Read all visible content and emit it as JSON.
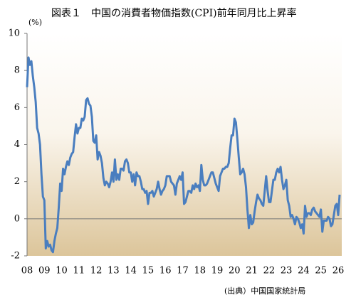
{
  "chart_data": {
    "type": "line",
    "title": "図表１　中国の消費者物価指数(CPI)前年同月比上昇率",
    "y_unit_label": "(%)",
    "source": "(出典）中国国家統計局",
    "categories": [
      "08",
      null,
      null,
      null,
      null,
      null,
      null,
      null,
      null,
      null,
      null,
      null,
      "09",
      null,
      null,
      null,
      null,
      null,
      null,
      null,
      null,
      null,
      null,
      null,
      "10",
      null,
      null,
      null,
      null,
      null,
      null,
      null,
      null,
      null,
      null,
      null,
      "11",
      null,
      null,
      null,
      null,
      null,
      null,
      null,
      null,
      null,
      null,
      null,
      "12",
      null,
      null,
      null,
      null,
      null,
      null,
      null,
      null,
      null,
      null,
      null,
      "13",
      null,
      null,
      null,
      null,
      null,
      null,
      null,
      null,
      null,
      null,
      null,
      "14",
      null,
      null,
      null,
      null,
      null,
      null,
      null,
      null,
      null,
      null,
      null,
      "15",
      null,
      null,
      null,
      null,
      null,
      null,
      null,
      null,
      null,
      null,
      null,
      "16",
      null,
      null,
      null,
      null,
      null,
      null,
      null,
      null,
      null,
      null,
      null,
      "17",
      null,
      null,
      null,
      null,
      null,
      null,
      null,
      null,
      null,
      null,
      null,
      "18",
      null,
      null,
      null,
      null,
      null,
      null,
      null,
      null,
      null,
      null,
      null,
      "19",
      null,
      null,
      null,
      null,
      null,
      null,
      null,
      null,
      null,
      null,
      null,
      "20",
      null,
      null,
      null,
      null,
      null,
      null,
      null,
      null,
      null,
      null,
      null,
      "21",
      null,
      null,
      null,
      null,
      null,
      null,
      null,
      null,
      null,
      null,
      null,
      "22",
      null,
      null,
      null,
      null,
      null,
      null,
      null,
      null,
      null,
      null,
      null,
      "23",
      null,
      null,
      null,
      null,
      null,
      null,
      null,
      null,
      null,
      null,
      null,
      "24",
      null,
      null,
      null,
      null,
      null,
      null,
      null,
      null,
      null,
      null,
      null,
      "25",
      null,
      null,
      null,
      null,
      null,
      null,
      null,
      null,
      null,
      null,
      null,
      "26",
      null
    ],
    "values": [
      7.1,
      8.7,
      8.3,
      8.5,
      7.7,
      7.1,
      6.3,
      4.9,
      4.6,
      4.0,
      2.4,
      1.2,
      1.0,
      -1.6,
      -1.2,
      -1.5,
      -1.4,
      -1.7,
      -1.8,
      -1.2,
      -0.8,
      -0.5,
      0.6,
      1.9,
      1.5,
      2.7,
      2.4,
      2.8,
      3.1,
      2.9,
      3.3,
      3.5,
      3.6,
      4.4,
      5.1,
      4.6,
      4.9,
      4.9,
      5.4,
      5.3,
      5.5,
      6.4,
      6.5,
      6.2,
      6.1,
      5.5,
      4.2,
      4.1,
      4.5,
      3.2,
      3.6,
      3.4,
      3.0,
      2.2,
      1.8,
      2.0,
      1.9,
      1.7,
      2.0,
      2.5,
      2.0,
      3.2,
      2.1,
      2.4,
      2.1,
      2.7,
      2.7,
      2.6,
      3.1,
      3.2,
      3.0,
      2.5,
      2.5,
      2.0,
      2.4,
      1.8,
      2.5,
      2.3,
      2.3,
      2.0,
      1.6,
      1.6,
      1.4,
      1.5,
      0.8,
      1.4,
      1.4,
      1.5,
      1.2,
      1.4,
      1.6,
      2.0,
      1.6,
      1.3,
      1.5,
      1.6,
      1.8,
      2.3,
      2.3,
      2.3,
      2.0,
      1.9,
      1.8,
      1.3,
      1.9,
      2.1,
      2.3,
      2.1,
      2.5,
      0.8,
      0.9,
      1.2,
      1.5,
      1.5,
      1.4,
      1.8,
      1.6,
      1.9,
      1.7,
      1.8,
      1.5,
      2.9,
      2.1,
      1.8,
      1.8,
      1.9,
      2.1,
      2.3,
      2.5,
      2.5,
      2.2,
      1.9,
      1.7,
      1.5,
      2.3,
      2.5,
      2.7,
      2.7,
      2.8,
      2.8,
      3.0,
      3.8,
      4.5,
      4.5,
      5.4,
      5.2,
      4.3,
      3.3,
      2.4,
      2.5,
      2.7,
      2.4,
      1.7,
      0.5,
      -0.5,
      0.2,
      -0.3,
      -0.2,
      0.4,
      0.9,
      1.3,
      1.1,
      1.0,
      0.8,
      0.7,
      1.5,
      2.3,
      1.5,
      0.9,
      0.9,
      1.5,
      2.1,
      2.1,
      2.5,
      2.7,
      2.5,
      2.8,
      2.1,
      1.6,
      1.8,
      2.1,
      1.0,
      0.7,
      0.1,
      0.2,
      0.0,
      -0.3,
      0.1,
      0.0,
      -0.2,
      -0.5,
      -0.3,
      -0.8,
      0.7,
      0.1,
      0.3,
      0.3,
      0.2,
      0.5,
      0.6,
      0.4,
      0.3,
      0.2,
      0.1,
      0.5,
      -0.7,
      -0.1,
      -0.1,
      -0.1,
      0.1,
      0.0,
      -0.4,
      -0.3,
      0.2,
      0.7,
      0.8,
      0.2,
      1.3
    ],
    "color": "#4a7ebf",
    "ylim": [
      -2,
      10
    ],
    "yticks": [
      -2,
      0,
      2,
      4,
      6,
      8,
      10
    ],
    "grid": false
  }
}
